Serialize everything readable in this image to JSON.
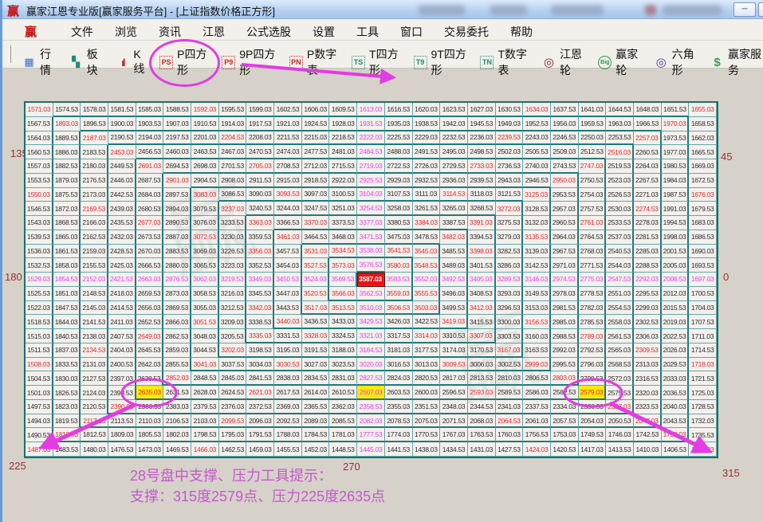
{
  "window": {
    "logo": "赢",
    "title": "赢家江恩专业版[赢家服务平台] - [上证指数价格正方形]",
    "minimize": "─",
    "maximize": ""
  },
  "menu": {
    "logo": "赢",
    "items": [
      "文件",
      "浏览",
      "资讯",
      "江恩",
      "公式选股",
      "设置",
      "工具",
      "窗口",
      "交易委托",
      "帮助"
    ]
  },
  "toolbar": {
    "items": [
      {
        "icon": "table-icon",
        "glyph": "▦",
        "label": "行情",
        "circled": false
      },
      {
        "icon": "blocks-icon",
        "glyph": "▚",
        "label": "板块",
        "circled": false
      },
      {
        "icon": "candles-icon",
        "glyph": "ıl",
        "label": "K线",
        "circled": false
      },
      {
        "icon": "ps-icon",
        "glyph": "PS",
        "label": "P四方形",
        "circled": true
      },
      {
        "icon": "p9-icon",
        "glyph": "P9",
        "label": "9P四方形",
        "circled": false
      },
      {
        "icon": "pn-icon",
        "glyph": "PN",
        "label": "P数字表",
        "circled": false
      },
      {
        "icon": "ts-icon",
        "glyph": "TS",
        "label": "T四方形",
        "circled": false
      },
      {
        "icon": "t9-icon",
        "glyph": "T9",
        "label": "9T四方形",
        "circled": false
      },
      {
        "icon": "tn-icon",
        "glyph": "TN",
        "label": "T数字表",
        "circled": false
      },
      {
        "icon": "gann-wheel-icon",
        "glyph": "◎",
        "label": "江恩轮",
        "circled": false
      },
      {
        "icon": "big-wheel-icon",
        "glyph": "Big",
        "label": "赢家轮",
        "circled": false
      },
      {
        "icon": "hexagon-icon",
        "glyph": "◎",
        "label": "六角形",
        "circled": false
      },
      {
        "icon": "dollar-icon",
        "glyph": "$",
        "label": "赢家服务",
        "circled": false
      }
    ]
  },
  "controls": {
    "start_price_label": "起始价格:",
    "start_price_value": "3587.0300",
    "step_label": "步长:",
    "step_value": "3.5",
    "combo_arrow": "▼",
    "resistance_button": "阻力位",
    "support_button": "支撑位",
    "annotation": "江恩经典判势工具--价格四方形"
  },
  "angle_labels": {
    "deg135": "135",
    "deg90": "90",
    "deg45": "45",
    "deg180": "180",
    "deg0": "0",
    "deg225": "225",
    "deg270": "270",
    "deg315": "315"
  },
  "footer": {
    "line1": "28号盘中支撑、压力工具提示：",
    "line2": "支撑：315度2579点、压力225度2635点"
  },
  "watermarks": [
    "赢",
    "赢"
  ],
  "colors": {
    "accent_magenta": "#e23ce2",
    "ray_cross": "#e145e1",
    "ray_diagonal": "#e02a2a",
    "center_bg": "#e81414",
    "highlight_yellow": "#ffe90a",
    "grid_line": "#1f7a78"
  },
  "grid": {
    "center_value": "3587.03",
    "step": "3.5",
    "rows": [
      "1571.03 1574.53 1578.03 1581.53 1585.03 1588.53 1592.03 1595.53 1599.03 1602.53 1606.03 1609.53 1613.03 1616.53 1620.03 1623.53 1627.03 1630.53 1634.03 1637.53 1641.03 1644.53 1648.03 1651.53 1655.03",
      "1567.53 1893.03 1896.53 1900.03 1903.53 1907.03 1910.53 1914.03 1917.53 1921.03 1924.53 1928.03 1931.53 1935.03 1938.53 1942.03 1945.53 1949.03 1952.53 1956.03 1959.53 1963.03 1966.53 1970.03 1658.53",
      "1564.03 1889.53 2187.03 2190.53 2194.03 2197.53 2201.03 2204.53 2208.03 2211.53 2215.03 2218.53 2222.03 2225.53 2229.03 2232.53 2236.03 2239.53 2243.03 2246.53 2250.03 2253.53 2257.03 1973.53 1662.03",
      "1560.53 1886.03 2183.53 2453.03 2456.53 2460.03 2463.53 2467.03 2470.53 2474.03 2477.53 2481.03 2484.53 2488.03 2491.53 2495.03 2498.53 2502.03 2505.53 2509.03 2512.53 2516.03 2260.53 1977.03 1665.53",
      "1557.03 1882.53 2180.03 2449.53 2691.03 2694.53 2698.03 2701.53 2705.03 2708.53 2712.03 2715.53 2719.03 2722.53 2726.03 2729.53 2733.03 2736.53 2740.03 2743.53 2747.03 2519.53 2264.03 1980.53 1669.03",
      "1553.53 1879.03 2176.53 2446.03 2687.53 2901.03 2904.53 2908.03 2911.53 2915.03 2918.53 2922.03 2925.53 2929.03 2932.53 2936.03 2939.53 2943.03 2946.53 2950.03 2750.53 2523.03 2267.53 1984.03 1672.53",
      "1550.03 1875.53 2173.03 2442.53 2684.03 2897.53 3083.03 3086.53 3090.03 3093.53 3097.03 3100.53 3104.03 3107.53 3111.03 3114.53 3118.03 3121.53 3125.03 2953.53 2754.03 2526.53 2271.03 1987.53 1676.03",
      "1546.53 1872.03 2169.53 2439.03 2680.53 2894.03 3079.53 3237.03 3240.53 3244.03 3247.53 3251.03 3254.53 3258.03 3261.53 3265.03 3268.53 3272.03 3128.53 2957.03 2757.53 2530.03 2274.53 1991.03 1679.53",
      "1543.03 1868.53 2166.03 2435.53 2677.03 2890.53 3076.03 3233.53 3363.03 3366.53 3370.03 3373.53 3377.03 3380.53 3384.03 3387.53 3391.03 3275.53 3132.03 2960.53 2761.03 2533.53 2278.03 1994.53 1683.03",
      "1539.53 1865.03 2162.53 2432.03 2673.53 2887.03 3072.53 3230.03 3359.53 3461.03 3464.53 3468.03 3471.53 3475.03 3478.53 3482.03 3394.53 3279.03 3135.53 2964.03 2764.53 2537.03 2281.53 1998.03 1686.53",
      "1536.03 1861.53 2159.03 2428.53 2670.03 2883.53 3069.03 3226.53 3356.03 3457.53 3531.03 3534.53 3538.03 3541.53 3545.03 3485.53 3398.03 3282.53 3139.03 2967.53 2768.03 2540.53 2285.03 2001.53 1690.03",
      "1532.53 1858.03 2155.53 2425.03 2666.53 2880.03 3065.53 3223.03 3352.53 3454.03 3527.53 3573.03 3576.53 3580.03 3548.53 3489.03 3401.53 3286.03 3142.53 2971.03 2771.53 2544.03 2288.53 2005.03 1693.53",
      "1529.03 1854.53 2152.03 2421.53 2663.03 2876.53 3062.03 3219.53 3349.03 3450.53 3524.03 3569.53 3587.03 3583.53 3552.03 3492.53 3405.03 3289.53 3146.03 2974.53 2775.03 2547.53 2292.03 2008.53 1697.03",
      "1525.53 1851.03 2148.53 2418.03 2659.53 2873.03 3058.53 3216.03 3345.53 3447.03 3520.53 3566.03 3562.53 3559.03 3555.53 3496.03 3408.53 3293.03 3149.53 2978.03 2778.53 2551.03 2295.53 2012.03 1700.53",
      "1522.03 1847.53 2145.03 2414.53 2656.03 2869.53 3055.03 3212.53 3342.03 3443.53 3517.03 3513.53 3510.03 3506.53 3503.03 3499.53 3412.03 3296.53 3153.03 2981.53 2782.03 2554.53 2299.03 2015.53 1704.03",
      "1518.53 1844.03 2141.53 2411.03 2652.53 2866.03 3051.53 3209.03 3338.53 3440.03 3436.53 3433.03 3429.53 3426.03 3422.53 3419.03 3415.53 3300.03 3156.53 2985.03 2785.53 2558.03 2302.53 2019.03 1707.53",
      "1515.03 1840.53 2138.03 2407.53 2649.03 2862.53 3048.03 3205.53 3335.03 3331.53 3328.03 3324.53 3321.03 3317.53 3314.03 3310.53 3307.03 3303.53 3160.03 2988.53 2789.03 2561.53 2306.03 2022.53 1711.03",
      "1511.53 1837.03 2134.53 2404.03 2645.53 2859.03 3044.53 3202.03 3198.53 3195.03 3191.53 3188.03 3184.53 3181.03 3177.53 3174.03 3170.53 3167.03 3163.53 2992.03 2792.53 2565.03 2309.53 2026.03 1714.53",
      "1508.03 1833.53 2131.03 2400.53 2642.03 2855.53 3041.03 3037.53 3034.03 3030.53 3027.03 3023.53 3020.03 3016.53 3013.03 3009.53 3006.03 3002.53 2999.03 2995.53 2796.03 2568.53 2313.03 2029.53 1718.03",
      "1504.53 1830.03 2127.53 2397.03 2638.53 2852.03 2848.53 2845.03 2841.53 2838.03 2834.53 2831.03 2827.53 2824.03 2820.53 2817.03 2813.53 2810.03 2806.53 2803.03 2799.53 2572.03 2316.53 2033.03 1721.53",
      "1501.03 1826.53 2124.03 2393.53 2635.03 2631.53 2628.03 2624.53 2621.03 2617.53 2614.03 2610.53 2607.03 2603.53 2600.03 2596.53 2593.03 2589.53 2586.03 2582.53 2579.03 2575.53 2320.03 2036.53 1725.03",
      "1497.53 1823.03 2120.53 2390.03 2386.53 2383.03 2379.53 2376.03 2372.53 2369.03 2365.53 2362.03 2358.53 2355.03 2351.53 2348.03 2344.53 2341.03 2337.53 2334.03 2330.53 2327.03 2323.53 2040.03 1728.53",
      "1494.03 1819.53 2117.03 2113.53 2110.03 2106.53 2103.03 2099.53 2096.03 2092.53 2089.03 2085.53 2082.03 2078.53 2075.03 2071.53 2068.03 2064.53 2061.03 2057.53 2054.03 2050.53 2047.03 2043.53 1732.03",
      "1490.53 1816.03 1812.53 1809.03 1805.53 1802.03 1798.53 1795.03 1791.53 1788.03 1784.53 1781.03 1777.53 1774.03 1770.53 1767.03 1763.53 1760.03 1756.53 1753.03 1749.53 1746.03 1742.53 1739.03 1735.53",
      "1487.03 1483.53 1480.03 1476.53 1473.03 1469.53 1466.03 1462.53 1459.03 1455.53 1452.03 1448.53 1445.03 1441.53 1438.03 1434.53 1431.03 1427.53 1424.03 1420.53 1417.03 1413.53 1410.03 1406.53 1403.03"
    ],
    "styles": [
      "rnnnnnrnnnnnmnnnnnrnnnnnr",
      "nrnnnnnnnnnnmnnnnnnnnnnrn",
      "nnrnnnnrnnnnmnnnnrnnnnrnn",
      "nnnrnnnnnnnnmnnnnnnnnrnnn",
      "nnnnrnnnrnnnmnnnrnnnrnnnn",
      "nnnnnrnnnnnnmnnnnnnrnnnnn",
      "rnnnnnrnnrnnmnnrnnrnnnnnr",
      "nnrnnnnrnnnnmnnnnrnnnnrnn",
      "nnnnrnnnrnrnmnrnrnnnrnnnn",
      "nnnnnnrnnrnnmnnrnnrnnnnnn",
      "nnnnnnnnrnrrmrrnrnnnnnnnn",
      "nnnnnnnnnnrrmrrnnnnnnnnnn",
      "mmmmmmmmmmmmcmmmmmmmmmmmm",
      "nnnnnnnnnnrrmrrnnnnnnnnnn",
      "nnnnnnnnrnrrmrrnrnnnnnnnn",
      "nnnnnnrnnrnnmnnrnnrnnnnnn",
      "nnnnrnnnrnrnmnrnrnnnrnnnn",
      "nnrnnnnrnnnnmnnnnrnnnnrnn",
      "rnnnnnrnnrnnmnnrnnrnnnnnr",
      "nnnnnrnnnnnnmnnnnnnrnnnnn",
      "nnnnynnnrnnnYnnnrnnnynnnn",
      "nnnrnnnnnnnnmnnnnnnnnrnnn",
      "nnrnnnnrnnnnmnnnnrnnnnrnn",
      "nrnnnnnnnnnnmnnnnnnnnnnrn",
      "rnnnnnrnnnnnmnnnnnrnnnnnr"
    ]
  }
}
